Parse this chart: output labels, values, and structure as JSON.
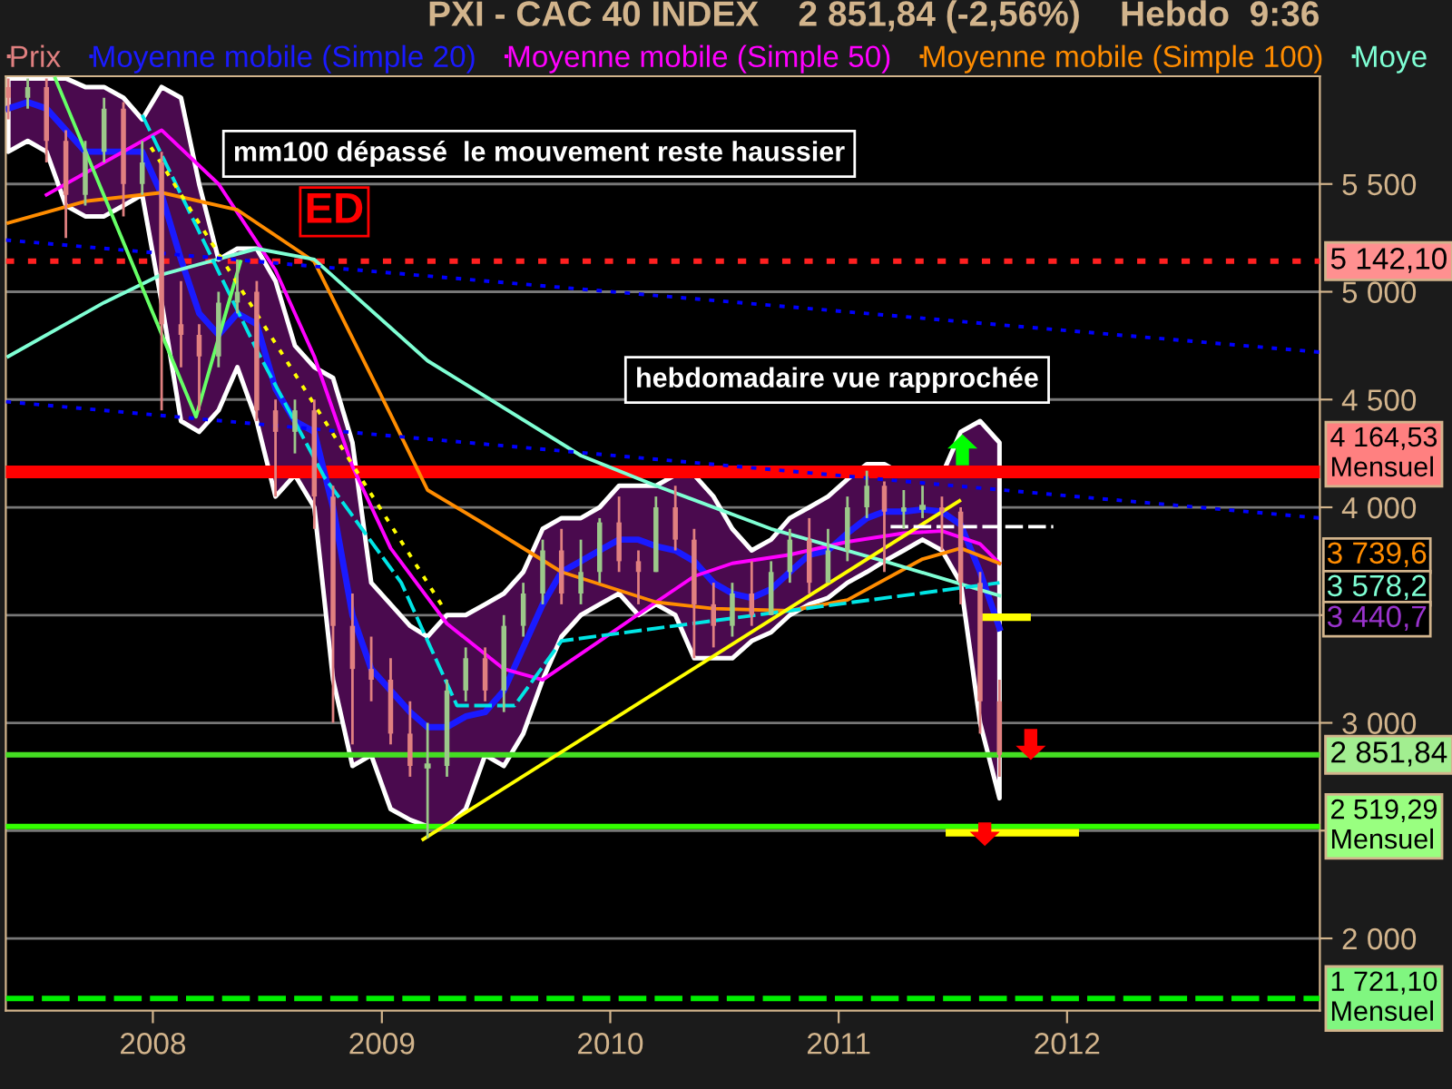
{
  "chart_data": {
    "type": "candlestick",
    "title": "PXI - CAC 40 INDEX    2 851,84 (-2,56%)    Hebdo  9:36",
    "xlim": [
      "2007-05-11",
      "2013-02-08"
    ],
    "xticks": [
      {
        "value": "2008-01-01",
        "label": "2008"
      },
      {
        "value": "2009-01-01",
        "label": "2009"
      },
      {
        "value": "2010-01-01",
        "label": "2010"
      },
      {
        "value": "2011-01-01",
        "label": "2011"
      },
      {
        "value": "2012-01-01",
        "label": "2012"
      }
    ],
    "ylim": [
      1665,
      6000
    ],
    "yticks": [
      {
        "value": 2000,
        "label": "2 000"
      },
      {
        "value": 2500,
        "label": null
      },
      {
        "value": 3000,
        "label": "3 000"
      },
      {
        "value": 3500,
        "label": null
      },
      {
        "value": 4000,
        "label": "4 000"
      },
      {
        "value": 4500,
        "label": "4 500"
      },
      {
        "value": 5000,
        "label": "5 000"
      },
      {
        "value": 5500,
        "label": "5 500"
      }
    ],
    "grid": "y",
    "legend": "top",
    "series": [
      {
        "name": "Prix",
        "x": [
          "2007-05-15",
          "2007-06-15",
          "2007-07-15",
          "2007-08-15",
          "2007-09-15",
          "2007-10-15",
          "2007-11-15",
          "2007-12-15",
          "2008-01-15",
          "2008-02-15",
          "2008-03-15",
          "2008-04-15",
          "2008-05-15",
          "2008-06-15",
          "2008-07-15",
          "2008-08-15",
          "2008-09-15",
          "2008-10-15",
          "2008-11-15",
          "2008-12-15",
          "2009-01-15",
          "2009-02-15",
          "2009-03-15",
          "2009-04-15",
          "2009-05-15",
          "2009-06-15",
          "2009-07-15",
          "2009-08-15",
          "2009-09-15",
          "2009-10-15",
          "2009-11-15",
          "2009-12-15",
          "2010-01-15",
          "2010-02-15",
          "2010-03-15",
          "2010-04-15",
          "2010-05-15",
          "2010-06-15",
          "2010-07-15",
          "2010-08-15",
          "2010-09-15",
          "2010-10-15",
          "2010-11-15",
          "2010-12-15",
          "2011-01-15",
          "2011-02-15",
          "2011-03-15",
          "2011-04-15",
          "2011-05-15",
          "2011-06-15",
          "2011-07-15",
          "2011-08-15",
          "2011-09-15"
        ],
        "ohlc": [
          [
            5950,
            5990,
            5800,
            5900
          ],
          [
            5900,
            5990,
            5850,
            5950
          ],
          [
            5950,
            5990,
            5600,
            5700
          ],
          [
            5700,
            5750,
            5250,
            5450
          ],
          [
            5450,
            5700,
            5400,
            5650
          ],
          [
            5650,
            5900,
            5600,
            5850
          ],
          [
            5850,
            5880,
            5350,
            5500
          ],
          [
            5500,
            5700,
            5450,
            5600
          ],
          [
            5600,
            5650,
            4450,
            4850
          ],
          [
            4850,
            5050,
            4650,
            4800
          ],
          [
            4800,
            4850,
            4450,
            4700
          ],
          [
            4700,
            5000,
            4650,
            4950
          ],
          [
            4950,
            5150,
            4900,
            5000
          ],
          [
            5000,
            5050,
            4400,
            4450
          ],
          [
            4450,
            4500,
            4050,
            4350
          ],
          [
            4350,
            4500,
            4250,
            4450
          ],
          [
            4450,
            4500,
            3900,
            4050
          ],
          [
            4050,
            4100,
            3000,
            3450
          ],
          [
            3450,
            3600,
            2900,
            3250
          ],
          [
            3250,
            3400,
            3100,
            3200
          ],
          [
            3200,
            3300,
            2900,
            2950
          ],
          [
            2950,
            3100,
            2750,
            2800
          ],
          [
            2800,
            3000,
            2465,
            2800
          ],
          [
            2800,
            3200,
            2750,
            3150
          ],
          [
            3150,
            3350,
            3100,
            3300
          ],
          [
            3300,
            3350,
            3100,
            3150
          ],
          [
            3150,
            3500,
            3050,
            3450
          ],
          [
            3450,
            3650,
            3400,
            3600
          ],
          [
            3600,
            3850,
            3550,
            3800
          ],
          [
            3800,
            3900,
            3550,
            3600
          ],
          [
            3600,
            3850,
            3550,
            3700
          ],
          [
            3700,
            3950,
            3650,
            3930
          ],
          [
            3930,
            4050,
            3700,
            3750
          ],
          [
            3750,
            3800,
            3550,
            3700
          ],
          [
            3700,
            4050,
            3700,
            4000
          ],
          [
            4000,
            4100,
            3800,
            3850
          ],
          [
            3850,
            3900,
            3300,
            3550
          ],
          [
            3550,
            3650,
            3350,
            3450
          ],
          [
            3450,
            3650,
            3400,
            3600
          ],
          [
            3600,
            3750,
            3450,
            3500
          ],
          [
            3500,
            3750,
            3500,
            3700
          ],
          [
            3700,
            3900,
            3650,
            3850
          ],
          [
            3850,
            3950,
            3600,
            3650
          ],
          [
            3650,
            3900,
            3650,
            3800
          ],
          [
            3800,
            4050,
            3750,
            4000
          ],
          [
            4000,
            4170,
            3950,
            4100
          ],
          [
            4100,
            4120,
            3700,
            3980
          ],
          [
            3980,
            4080,
            3900,
            4000
          ],
          [
            4000,
            4100,
            3950,
            4000
          ],
          [
            4000,
            4050,
            3800,
            3980
          ],
          [
            3980,
            4000,
            3550,
            3650
          ],
          [
            3650,
            3700,
            2950,
            3100
          ],
          [
            3100,
            3200,
            2750,
            2851.84
          ]
        ],
        "colors": [
          "#e08080",
          "#9cc88a",
          "#e08080",
          "#e08080",
          "#9cc88a",
          "#9cc88a",
          "#e08080",
          "#9cc88a",
          "#e08080",
          "#e08080",
          "#e08080",
          "#9cc88a",
          "#9cc88a",
          "#e08080",
          "#e08080",
          "#9cc88a",
          "#e08080",
          "#e08080",
          "#e08080",
          "#e08080",
          "#e08080",
          "#e08080",
          "#9cc88a",
          "#9cc88a",
          "#9cc88a",
          "#e08080",
          "#9cc88a",
          "#9cc88a",
          "#9cc88a",
          "#e08080",
          "#9cc88a",
          "#9cc88a",
          "#e08080",
          "#e08080",
          "#9cc88a",
          "#e08080",
          "#e08080",
          "#e08080",
          "#9cc88a",
          "#e08080",
          "#9cc88a",
          "#9cc88a",
          "#e08080",
          "#9cc88a",
          "#9cc88a",
          "#9cc88a",
          "#e08080",
          "#9cc88a",
          "#9cc88a",
          "#e08080",
          "#e08080",
          "#e08080",
          "#e08080"
        ]
      },
      {
        "type": "line",
        "name": "Moyenne mobile (Simple 20)",
        "color": "#1a1aff",
        "x": [
          "2007-05-15",
          "2007-06-15",
          "2007-07-15",
          "2007-08-15",
          "2007-09-15",
          "2007-10-15",
          "2007-11-15",
          "2007-12-15",
          "2008-01-15",
          "2008-02-15",
          "2008-03-15",
          "2008-04-15",
          "2008-05-15",
          "2008-06-15",
          "2008-07-15",
          "2008-08-15",
          "2008-09-15",
          "2008-10-15",
          "2008-11-15",
          "2008-12-15",
          "2009-01-15",
          "2009-02-15",
          "2009-03-15",
          "2009-04-15",
          "2009-05-15",
          "2009-06-15",
          "2009-07-15",
          "2009-08-15",
          "2009-09-15",
          "2009-10-15",
          "2009-11-15",
          "2009-12-15",
          "2010-01-15",
          "2010-02-15",
          "2010-03-15",
          "2010-04-15",
          "2010-05-15",
          "2010-06-15",
          "2010-07-15",
          "2010-08-15",
          "2010-09-15",
          "2010-10-15",
          "2010-11-15",
          "2010-12-15",
          "2011-01-15",
          "2011-02-15",
          "2011-03-15",
          "2011-04-15",
          "2011-05-15",
          "2011-06-15",
          "2011-07-15",
          "2011-08-15",
          "2011-09-15"
        ],
        "values": [
          5850,
          5880,
          5850,
          5750,
          5650,
          5650,
          5650,
          5650,
          5450,
          5150,
          4900,
          4800,
          4900,
          4850,
          4550,
          4400,
          4350,
          4000,
          3500,
          3250,
          3150,
          3050,
          2980,
          2980,
          3030,
          3050,
          3150,
          3350,
          3550,
          3700,
          3750,
          3800,
          3850,
          3850,
          3820,
          3800,
          3750,
          3650,
          3600,
          3580,
          3620,
          3700,
          3780,
          3800,
          3880,
          3950,
          3980,
          3980,
          3990,
          3980,
          3920,
          3700,
          3440
        ],
        "upper": [
          5990,
          5990,
          5990,
          5990,
          5950,
          5950,
          5900,
          5800,
          5950,
          5900,
          5500,
          5150,
          5200,
          5200,
          5050,
          4750,
          4650,
          4600,
          4300,
          3650,
          3550,
          3450,
          3400,
          3500,
          3500,
          3550,
          3600,
          3700,
          3900,
          3950,
          3950,
          4000,
          4100,
          4100,
          4100,
          4150,
          4150,
          4050,
          3900,
          3800,
          3850,
          3950,
          4000,
          4050,
          4130,
          4200,
          4200,
          4150,
          4150,
          4150,
          4350,
          4400,
          4300
        ],
        "lower": [
          5650,
          5700,
          5650,
          5400,
          5350,
          5350,
          5400,
          5450,
          4950,
          4400,
          4350,
          4450,
          4650,
          4400,
          4050,
          4150,
          4000,
          3200,
          2800,
          2850,
          2600,
          2550,
          2520,
          2520,
          2600,
          2850,
          2800,
          2950,
          3200,
          3400,
          3500,
          3550,
          3600,
          3500,
          3550,
          3500,
          3300,
          3300,
          3300,
          3380,
          3420,
          3500,
          3550,
          3580,
          3650,
          3700,
          3750,
          3800,
          3850,
          3800,
          3650,
          3000,
          2650
        ]
      },
      {
        "type": "line",
        "name": "Moyenne mobile (Simple 50)",
        "color": "#ff00ff",
        "x": [
          "2007-07-15",
          "2007-10-15",
          "2008-01-15",
          "2008-04-15",
          "2008-07-15",
          "2008-09-15",
          "2008-11-15",
          "2009-01-15",
          "2009-04-15",
          "2009-07-15",
          "2009-09-15",
          "2009-12-15",
          "2010-03-15",
          "2010-05-15",
          "2010-07-15",
          "2010-10-15",
          "2011-01-15",
          "2011-04-15",
          "2011-06-15",
          "2011-08-15",
          "2011-09-15"
        ],
        "values": [
          5450,
          5600,
          5750,
          5500,
          5100,
          4700,
          4190,
          3810,
          3460,
          3250,
          3200,
          3380,
          3560,
          3680,
          3740,
          3780,
          3840,
          3880,
          3890,
          3830,
          3740
        ]
      },
      {
        "type": "line",
        "name": "Moyenne mobile (Simple 100)",
        "color": "#ff8c00",
        "x": [
          "2007-05-15",
          "2007-09-15",
          "2008-01-15",
          "2008-05-15",
          "2008-09-15",
          "2009-01-15",
          "2009-03-15",
          "2009-06-15",
          "2009-10-15",
          "2010-03-15",
          "2010-06-15",
          "2010-10-15",
          "2011-01-15",
          "2011-05-15",
          "2011-07-15",
          "2011-09-15"
        ],
        "values": [
          5320,
          5420,
          5460,
          5380,
          5140,
          4430,
          4080,
          3920,
          3700,
          3560,
          3530,
          3520,
          3570,
          3760,
          3810,
          3740
        ]
      },
      {
        "type": "line",
        "name": "Moye",
        "color": "#7fffd4",
        "x": [
          "2007-05-15",
          "2007-10-15",
          "2008-01-15",
          "2008-06-15",
          "2008-09-15",
          "2009-03-15",
          "2009-11-15",
          "2010-03-15",
          "2010-09-15",
          "2011-03-15",
          "2011-09-15"
        ],
        "values": [
          4700,
          4950,
          5080,
          5200,
          5150,
          4680,
          4240,
          4100,
          3900,
          3750,
          3590
        ]
      },
      {
        "type": "line",
        "color": "#00e5e5",
        "line_style": "dashed",
        "x": [
          "2007-12-15",
          "2008-06-15",
          "2008-10-01",
          "2009-02-01",
          "2009-05-01",
          "2009-08-01",
          "2009-10-15",
          "2011-09-15"
        ],
        "values": [
          5820,
          4730,
          4140,
          3650,
          3080,
          3080,
          3380,
          3650
        ]
      },
      {
        "type": "line",
        "color": "#66ff66",
        "x": [
          "2007-07-29",
          "2008-03-10",
          "2008-05-20"
        ],
        "values": [
          5990,
          4420,
          5140
        ]
      },
      {
        "type": "line",
        "color": "#ffff00",
        "line_style": "dotted",
        "x": [
          "2007-12-29",
          "2009-04-08"
        ],
        "values": [
          5670,
          3540
        ]
      },
      {
        "type": "line",
        "color": "#0000ff",
        "line_style": "dotted",
        "x": [
          "2007-05-11",
          "2013-02-08"
        ],
        "values": [
          5240,
          4720
        ]
      },
      {
        "type": "line",
        "color": "#0000ff",
        "line_style": "dotted",
        "x": [
          "2007-05-11",
          "2013-02-08"
        ],
        "values": [
          4490,
          3950
        ]
      },
      {
        "type": "line",
        "color": "#ffff00",
        "x": [
          "2009-03-08",
          "2011-07-13"
        ],
        "values": [
          2460,
          4030
        ]
      },
      {
        "type": "line",
        "color": "#ffffff",
        "line_style": "dashed",
        "x": [
          "2011-03-25",
          "2011-12-10"
        ],
        "values": [
          3910,
          3910
        ]
      },
      {
        "type": "line",
        "color": "#ffff00",
        "x": [
          "2011-08-24",
          "2011-10-29"
        ],
        "values": [
          3490,
          3490
        ]
      },
      {
        "type": "line",
        "color": "#ffff00",
        "x": [
          "2011-06-27",
          "2012-01-14"
        ],
        "values": [
          2490,
          2490
        ]
      }
    ],
    "ref_lines": [
      {
        "axis": "y",
        "value": 5142.1,
        "label": "5 142,10",
        "color": "#ff2020",
        "line_style": "dotted"
      },
      {
        "axis": "y",
        "value": 4164.53,
        "label": "4 164,53\nMensuel",
        "color": "#ff0000",
        "line_style": "solid"
      },
      {
        "axis": "y",
        "value": 2851.84,
        "label": "2 851,84",
        "color": "#44dd22",
        "line_style": "solid"
      },
      {
        "axis": "y",
        "value": 2519.29,
        "label": "2 519,29\nMensuel",
        "color": "#33ff00",
        "line_style": "solid"
      },
      {
        "axis": "y",
        "value": 1721.1,
        "label": "1 721,10\nMensuel",
        "color": "#00ee00",
        "line_style": "dashed"
      }
    ],
    "annotations": [
      "mm100 dépassé  le mouvement reste haussier",
      "hebdomadaire vue rapprochée",
      "ED",
      "3 739,6",
      "3 578,2",
      "3 440,7"
    ]
  }
}
